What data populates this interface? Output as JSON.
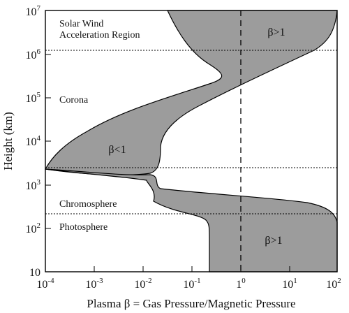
{
  "x_axis": {
    "label": "Plasma β = Gas Pressure/Magnetic Pressure",
    "ticks": [
      {
        "base": "10",
        "exp": "-4"
      },
      {
        "base": "10",
        "exp": "-3"
      },
      {
        "base": "10",
        "exp": "-2"
      },
      {
        "base": "10",
        "exp": "-1"
      },
      {
        "base": "1",
        "exp": "0"
      },
      {
        "base": "10",
        "exp": "1"
      },
      {
        "base": "10",
        "exp": "2"
      }
    ]
  },
  "y_axis": {
    "label": "Height (km)",
    "ticks": [
      {
        "base": "10",
        "exp": ""
      },
      {
        "base": "10",
        "exp": "2"
      },
      {
        "base": "10",
        "exp": "3"
      },
      {
        "base": "10",
        "exp": "4"
      },
      {
        "base": "10",
        "exp": "5"
      },
      {
        "base": "10",
        "exp": "6"
      },
      {
        "base": "10",
        "exp": "7"
      }
    ]
  },
  "regions": {
    "solar_wind_line1": "Solar Wind",
    "solar_wind_line2": "Acceleration Region",
    "corona": "Corona",
    "chromosphere": "Chromosphere",
    "photosphere": "Photosphere"
  },
  "beta_labels": {
    "upper": "β>1",
    "middle": "β<1",
    "lower": "β>1"
  },
  "colors": {
    "band_fill": "#9c9c9c"
  }
}
